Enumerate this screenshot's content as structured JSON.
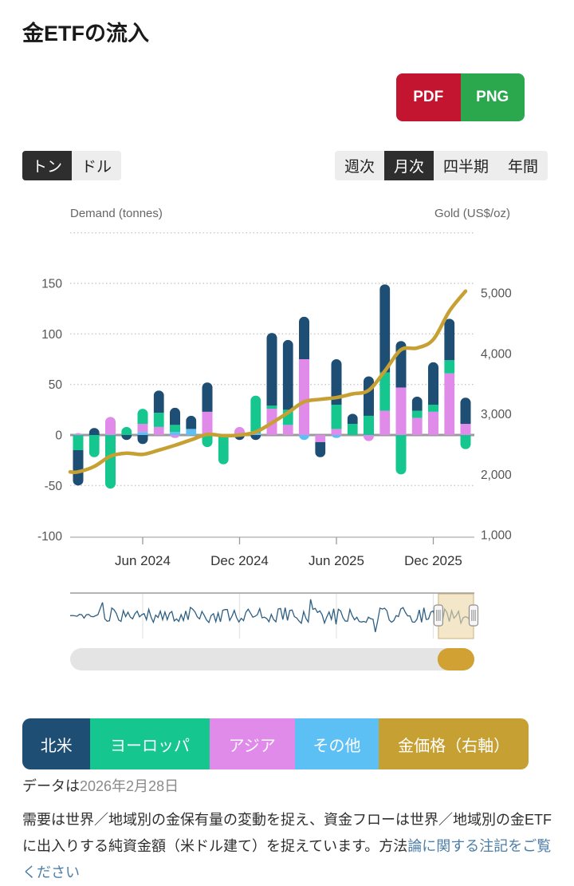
{
  "page": {
    "title": "金ETFの流入"
  },
  "export": {
    "pdf_label": "PDF",
    "png_label": "PNG"
  },
  "unit_toggle": {
    "options": [
      {
        "label": "トン",
        "selected": true
      },
      {
        "label": "ドル",
        "selected": false
      }
    ]
  },
  "period_tabs": {
    "options": [
      {
        "label": "週次",
        "selected": false
      },
      {
        "label": "月次",
        "selected": true
      },
      {
        "label": "四半期",
        "selected": false
      },
      {
        "label": "年間",
        "selected": false
      }
    ]
  },
  "chart_data": {
    "type": "bar+line",
    "title": "金ETFの流入",
    "left_axis": {
      "title": "Demand (tonnes)",
      "ticks": [
        150,
        100,
        50,
        0,
        -50,
        -100
      ],
      "range": [
        -100,
        200
      ],
      "grid": "dotted"
    },
    "right_axis": {
      "title": "Gold (US$/oz)",
      "tick_labels": [
        "5,000",
        "4,000",
        "3,000",
        "2,000",
        "1,000"
      ],
      "values": [
        5000,
        4000,
        3000,
        2000,
        1000
      ],
      "range": [
        1000,
        6000
      ]
    },
    "x_tick_labels": [
      "Jun 2024",
      "Dec 2024",
      "Jun 2025",
      "Dec 2025"
    ],
    "x_tick_month_index": [
      4,
      10,
      16,
      22
    ],
    "months": [
      "2024-02",
      "2024-03",
      "2024-04",
      "2024-05",
      "2024-06",
      "2024-07",
      "2024-08",
      "2024-09",
      "2024-10",
      "2024-11",
      "2024-12",
      "2025-01",
      "2025-02",
      "2025-03",
      "2025-04",
      "2025-05",
      "2025-06",
      "2025-07",
      "2025-08",
      "2025-09",
      "2025-10",
      "2025-11",
      "2025-12",
      "2026-01",
      "2026-02"
    ],
    "stacking": "normal",
    "series": [
      {
        "key": "na",
        "name": "北米",
        "type": "column",
        "color": "#1f4e74",
        "values": [
          -35,
          7,
          0,
          -5,
          -9,
          22,
          17,
          13,
          29,
          0,
          -5,
          -5,
          72,
          69,
          42,
          -15,
          45,
          10,
          39,
          87,
          46,
          14,
          42,
          41,
          26
        ]
      },
      {
        "key": "eu",
        "name": "ヨーロッパ",
        "type": "column",
        "color": "#15c78e",
        "values": [
          -15,
          -22,
          -53,
          8,
          15,
          14,
          7,
          0,
          -12,
          -29,
          0,
          37,
          3,
          15,
          0,
          0,
          24,
          11,
          19,
          38,
          -39,
          7,
          7,
          13,
          -14
        ]
      },
      {
        "key": "asia",
        "name": "アジア",
        "type": "column",
        "color": "#e08bea",
        "values": [
          2,
          0,
          18,
          0,
          8,
          8,
          -3,
          0,
          23,
          0,
          8,
          0,
          26,
          10,
          75,
          -7,
          6,
          0,
          -6,
          24,
          47,
          17,
          23,
          61,
          11
        ]
      },
      {
        "key": "oth",
        "name": "その他",
        "type": "column",
        "color": "#5cc0f5",
        "values": [
          0,
          0,
          0,
          0,
          3,
          0,
          3,
          6,
          0,
          0,
          0,
          2,
          0,
          0,
          -5,
          0,
          -3,
          0,
          0,
          0,
          0,
          0,
          0,
          0,
          0
        ]
      },
      {
        "key": "gold",
        "name": "金価格（右軸）",
        "type": "line",
        "axis": "right",
        "color": "#c7a033",
        "values": [
          2040,
          2130,
          2300,
          2350,
          2330,
          2400,
          2480,
          2570,
          2660,
          2640,
          2650,
          2700,
          2850,
          3020,
          3200,
          3240,
          3270,
          3330,
          3390,
          3710,
          4060,
          4090,
          4230,
          4700,
          5030
        ]
      }
    ],
    "navigator": {
      "selected_from_frac": 0.911,
      "selected_to_frac": 0.998
    },
    "legend_position": "bottom"
  },
  "legend": {
    "items": [
      {
        "label": "北米",
        "color": "#1f4e74",
        "flex": 86
      },
      {
        "label": "ヨーロッパ",
        "color": "#15c78e",
        "flex": 150
      },
      {
        "label": "アジア",
        "color": "#e08bea",
        "flex": 108
      },
      {
        "label": "その他",
        "color": "#5cc0f5",
        "flex": 106
      },
      {
        "label": "金価格（右軸）",
        "color": "#c7a033",
        "flex": 189
      }
    ]
  },
  "footer": {
    "data_as_of_prefix": "データは",
    "data_as_of_date": "2026年2月28日",
    "description": "需要は世界／地域別の金保有量の変動を捉え、資金フローは世界／地域別の金ETFに出入りする純資金額（米ドル建て）を捉えています。方法",
    "link_text": "論に関する注記をご覧ください"
  }
}
